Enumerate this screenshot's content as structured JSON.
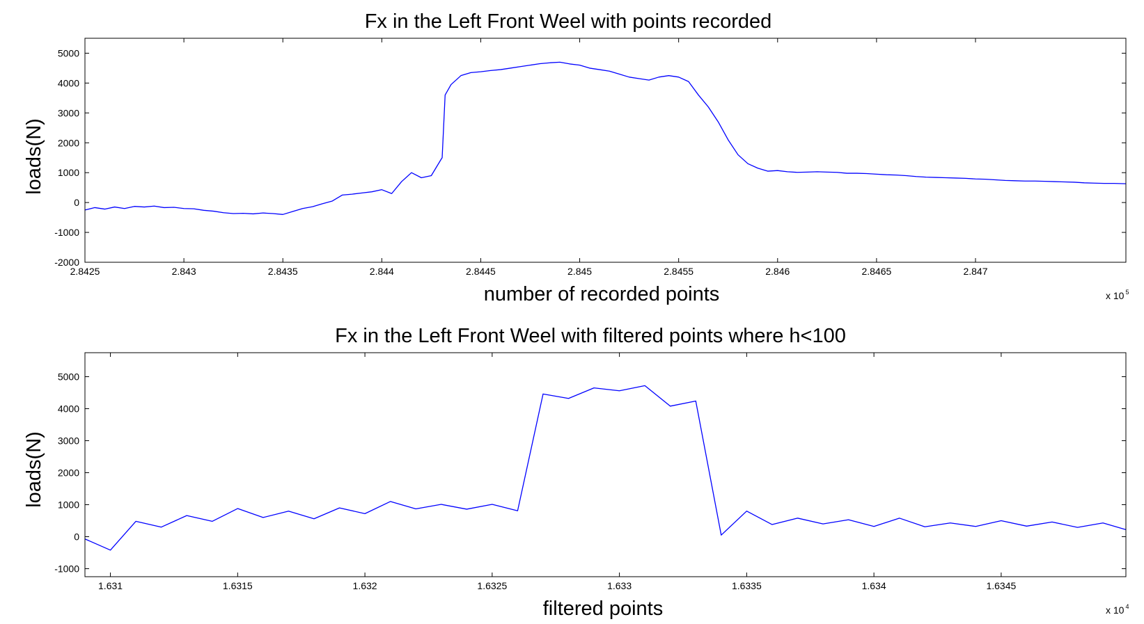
{
  "chart_data": [
    {
      "type": "line",
      "title": "Fx in the Left Front Weel with points recorded",
      "xlabel": "number of recorded points",
      "ylabel": "loads(N)",
      "xlim": [
        2.8425,
        2.84776
      ],
      "ylim": [
        -2000,
        5500
      ],
      "x_multiplier": "x 10",
      "x_multiplier_exp": "5",
      "xticks": [
        2.8425,
        2.843,
        2.8435,
        2.844,
        2.8445,
        2.845,
        2.8455,
        2.846,
        2.8465,
        2.847
      ],
      "xtick_labels": [
        "2.8425",
        "2.843",
        "2.8435",
        "2.844",
        "2.8445",
        "2.845",
        "2.8455",
        "2.846",
        "2.8465",
        "2.847"
      ],
      "yticks": [
        -2000,
        -1000,
        0,
        1000,
        2000,
        3000,
        4000,
        5000
      ],
      "ytick_labels": [
        "-2000",
        "-1000",
        "0",
        "1000",
        "2000",
        "3000",
        "4000",
        "5000"
      ],
      "color": "#0000ff",
      "series": [
        {
          "x": [
            2.8425,
            2.84255,
            2.8426,
            2.84265,
            2.8427,
            2.84275,
            2.8428,
            2.84285,
            2.8429,
            2.84295,
            2.843,
            2.84305,
            2.8431,
            2.84315,
            2.8432,
            2.84325,
            2.8433,
            2.84335,
            2.8434,
            2.84345,
            2.8435,
            2.84355,
            2.8436,
            2.84365,
            2.8437,
            2.84375,
            2.8438,
            2.84385,
            2.8439,
            2.84395,
            2.844,
            2.84405,
            2.8441,
            2.84415,
            2.8442,
            2.84425,
            2.8443,
            2.844305,
            2.84432,
            2.84435,
            2.8444,
            2.84445,
            2.8445,
            2.84455,
            2.8446,
            2.84465,
            2.8447,
            2.84475,
            2.8448,
            2.84485,
            2.8449,
            2.84495,
            2.845,
            2.84505,
            2.8451,
            2.84515,
            2.8452,
            2.84525,
            2.8453,
            2.84535,
            2.8454,
            2.84545,
            2.8455,
            2.84555,
            2.8456,
            2.84565,
            2.8457,
            2.84575,
            2.8458,
            2.84585,
            2.8459,
            2.84595,
            2.846,
            2.84605,
            2.8461,
            2.84615,
            2.8462,
            2.84625,
            2.8463,
            2.84635,
            2.8464,
            2.84645,
            2.8465,
            2.84655,
            2.8466,
            2.84665,
            2.8467,
            2.84675,
            2.8468,
            2.84685,
            2.8469,
            2.84695,
            2.847,
            2.84705,
            2.8471,
            2.84715,
            2.8472,
            2.84725,
            2.8473,
            2.84735,
            2.8474,
            2.84745,
            2.8475,
            2.84755,
            2.8476,
            2.84765,
            2.8477,
            2.84776
          ],
          "y": [
            -250,
            -170,
            -220,
            -150,
            -200,
            -130,
            -150,
            -120,
            -170,
            -160,
            -200,
            -210,
            -260,
            -290,
            -340,
            -370,
            -360,
            -380,
            -350,
            -370,
            -400,
            -300,
            -200,
            -140,
            -40,
            50,
            250,
            280,
            320,
            360,
            430,
            300,
            700,
            1000,
            830,
            900,
            1450,
            1500,
            3600,
            3950,
            4250,
            4350,
            4380,
            4420,
            4450,
            4500,
            4550,
            4600,
            4650,
            4680,
            4700,
            4640,
            4600,
            4500,
            4450,
            4400,
            4300,
            4200,
            4150,
            4100,
            4200,
            4250,
            4200,
            4050,
            3600,
            3200,
            2700,
            2100,
            1600,
            1300,
            1150,
            1050,
            1070,
            1030,
            1010,
            1020,
            1030,
            1020,
            1010,
            980,
            980,
            970,
            950,
            930,
            920,
            900,
            870,
            850,
            840,
            830,
            820,
            810,
            790,
            780,
            760,
            740,
            730,
            720,
            720,
            710,
            700,
            690,
            680,
            660,
            650,
            640,
            640,
            630
          ]
        }
      ]
    },
    {
      "type": "line",
      "title": "Fx in the Left Front Weel with filtered points where h<100",
      "xlabel": "filtered points",
      "ylabel": "loads(N)",
      "xlim": [
        1.6309,
        1.63499
      ],
      "ylim": [
        -1250,
        5750
      ],
      "x_multiplier": "x 10",
      "x_multiplier_exp": "4",
      "xticks": [
        1.631,
        1.6315,
        1.632,
        1.6325,
        1.633,
        1.6335,
        1.634,
        1.6345
      ],
      "xtick_labels": [
        "1.631",
        "1.6315",
        "1.632",
        "1.6325",
        "1.633",
        "1.6335",
        "1.634",
        "1.6345"
      ],
      "yticks": [
        -1000,
        0,
        1000,
        2000,
        3000,
        4000,
        5000
      ],
      "ytick_labels": [
        "-1000",
        "0",
        "1000",
        "2000",
        "3000",
        "4000",
        "5000"
      ],
      "color": "#0000ff",
      "series": [
        {
          "x": [
            1.6309,
            1.631,
            1.6311,
            1.6312,
            1.6313,
            1.6314,
            1.6315,
            1.6316,
            1.6317,
            1.6318,
            1.6319,
            1.632,
            1.6321,
            1.6322,
            1.6323,
            1.6324,
            1.6325,
            1.6326,
            1.6327,
            1.6328,
            1.6329,
            1.633,
            1.6331,
            1.6332,
            1.6333,
            1.6334,
            1.6335,
            1.6336,
            1.6337,
            1.6338,
            1.6339,
            1.634,
            1.6341,
            1.6342,
            1.6343,
            1.6344,
            1.6345,
            1.6346,
            1.6347,
            1.6348,
            1.6349,
            1.63499
          ],
          "y": [
            -70,
            -420,
            480,
            300,
            660,
            480,
            880,
            600,
            800,
            560,
            900,
            720,
            1100,
            870,
            1010,
            860,
            1010,
            810,
            4460,
            4320,
            4650,
            4560,
            4720,
            4080,
            4240,
            50,
            800,
            380,
            580,
            400,
            530,
            320,
            580,
            310,
            430,
            320,
            500,
            330,
            460,
            290,
            430,
            220
          ]
        }
      ]
    }
  ]
}
